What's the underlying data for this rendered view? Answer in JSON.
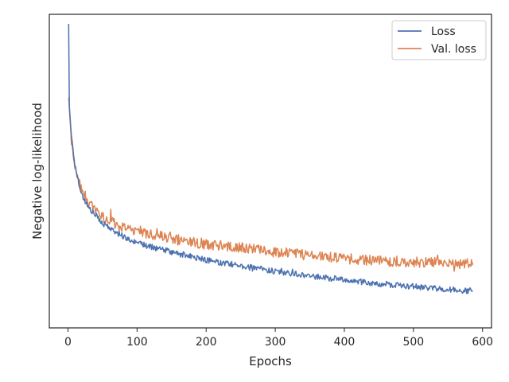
{
  "chart_data": {
    "type": "line",
    "title": "",
    "xlabel": "Epochs",
    "ylabel": "Negative log-likelihood",
    "xlim": [
      -27,
      613
    ],
    "x_ticks": [
      0,
      100,
      200,
      300,
      400,
      500,
      600
    ],
    "y_ticks_shown": false,
    "grid": false,
    "legend_position": "top-right",
    "x_range": [
      1,
      586
    ],
    "series": [
      {
        "name": "Loss",
        "color": "#4c72b0",
        "trend": [
          {
            "x": 1,
            "y": 1.0
          },
          {
            "x": 2,
            "y": 0.72
          },
          {
            "x": 5,
            "y": 0.62
          },
          {
            "x": 10,
            "y": 0.52
          },
          {
            "x": 20,
            "y": 0.42
          },
          {
            "x": 30,
            "y": 0.375
          },
          {
            "x": 50,
            "y": 0.325
          },
          {
            "x": 75,
            "y": 0.285
          },
          {
            "x": 100,
            "y": 0.255
          },
          {
            "x": 150,
            "y": 0.225
          },
          {
            "x": 200,
            "y": 0.198
          },
          {
            "x": 250,
            "y": 0.178
          },
          {
            "x": 300,
            "y": 0.16
          },
          {
            "x": 350,
            "y": 0.145
          },
          {
            "x": 400,
            "y": 0.13
          },
          {
            "x": 450,
            "y": 0.118
          },
          {
            "x": 500,
            "y": 0.108
          },
          {
            "x": 550,
            "y": 0.098
          },
          {
            "x": 586,
            "y": 0.092
          }
        ],
        "noise": 0.01
      },
      {
        "name": "Val. loss",
        "color": "#dd8452",
        "trend": [
          {
            "x": 1,
            "y": 0.75
          },
          {
            "x": 5,
            "y": 0.6
          },
          {
            "x": 10,
            "y": 0.51
          },
          {
            "x": 20,
            "y": 0.43
          },
          {
            "x": 30,
            "y": 0.39
          },
          {
            "x": 50,
            "y": 0.345
          },
          {
            "x": 75,
            "y": 0.315
          },
          {
            "x": 100,
            "y": 0.295
          },
          {
            "x": 150,
            "y": 0.27
          },
          {
            "x": 200,
            "y": 0.252
          },
          {
            "x": 250,
            "y": 0.24
          },
          {
            "x": 300,
            "y": 0.225
          },
          {
            "x": 350,
            "y": 0.215
          },
          {
            "x": 400,
            "y": 0.205
          },
          {
            "x": 450,
            "y": 0.195
          },
          {
            "x": 500,
            "y": 0.192
          },
          {
            "x": 550,
            "y": 0.188
          },
          {
            "x": 586,
            "y": 0.185
          }
        ],
        "noise": 0.018
      }
    ]
  }
}
